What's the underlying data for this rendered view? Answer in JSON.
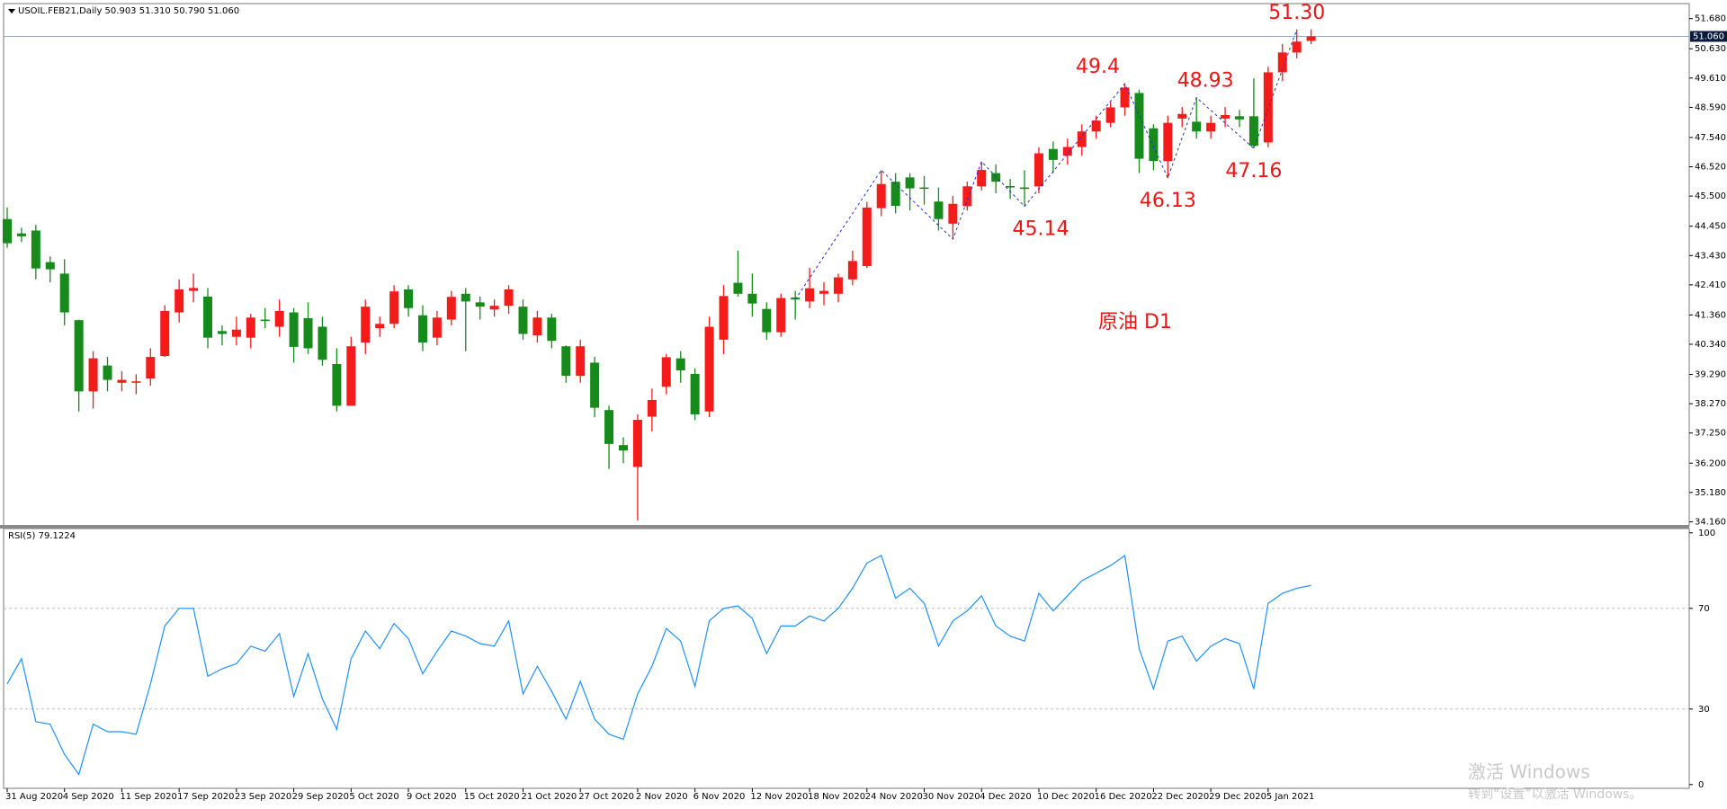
{
  "header": "USOIL.FEB21,Daily  50.903 51.310 50.790 51.060",
  "watermark": {
    "line1": "激活 Windows",
    "line2": "转到“设置”以激活 Windows。"
  },
  "chart_data": [
    {
      "type": "candlestick",
      "note_text": "原油 D1",
      "categories": [
        "31 Aug 2020",
        null,
        null,
        null,
        "4 Sep 2020",
        null,
        null,
        null,
        "11 Sep 2020",
        null,
        null,
        null,
        "17 Sep 2020",
        null,
        null,
        null,
        "23 Sep 2020",
        null,
        null,
        null,
        "29 Sep 2020",
        null,
        null,
        null,
        "5 Oct 2020",
        null,
        null,
        null,
        "9 Oct 2020",
        null,
        null,
        null,
        "15 Oct 2020",
        null,
        null,
        null,
        "21 Oct 2020",
        null,
        null,
        null,
        "27 Oct 2020",
        null,
        null,
        null,
        "2 Nov 2020",
        null,
        null,
        null,
        "6 Nov 2020",
        null,
        null,
        null,
        "12 Nov 2020",
        null,
        null,
        null,
        "18 Nov 2020",
        null,
        null,
        null,
        "24 Nov 2020",
        null,
        null,
        null,
        "30 Nov 2020",
        null,
        null,
        null,
        "4 Dec 2020",
        null,
        null,
        null,
        "10 Dec 2020",
        null,
        null,
        null,
        "16 Dec 2020",
        null,
        null,
        null,
        "22 Dec 2020",
        null,
        null,
        null,
        "29 Dec 2020",
        null,
        null,
        null,
        "5 Jan 2021",
        null,
        null,
        null
      ],
      "open": [
        44.7,
        44.2,
        44.3,
        43.2,
        42.8,
        41.18,
        38.7,
        39.6,
        39.0,
        39.0,
        39.15,
        39.93,
        41.45,
        42.2,
        42.0,
        40.8,
        40.6,
        40.57,
        41.2,
        40.95,
        41.45,
        41.25,
        40.95,
        39.65,
        38.2,
        40.4,
        40.9,
        41.05,
        42.25,
        41.35,
        40.57,
        41.2,
        42.1,
        41.8,
        41.55,
        41.68,
        41.65,
        40.65,
        41.27,
        40.27,
        39.24,
        39.7,
        38.05,
        36.83,
        36.07,
        37.82,
        38.86,
        39.85,
        39.31,
        38.0,
        40.5,
        42.48,
        42.1,
        41.57,
        40.76,
        41.97,
        41.83,
        42.1,
        42.1,
        42.6,
        43.06,
        45.08,
        46.0,
        46.15,
        45.8,
        45.31,
        44.54,
        45.15,
        45.84,
        46.3,
        45.85,
        45.8,
        45.84,
        47.14,
        46.91,
        47.21,
        47.75,
        48.05,
        48.59,
        49.09,
        47.86,
        46.72,
        48.2,
        48.09,
        47.75,
        48.2,
        48.28,
        48.28,
        47.37,
        49.81,
        50.5,
        50.903
      ],
      "high": [
        45.1,
        44.4,
        44.5,
        43.4,
        43.3,
        41.2,
        40.1,
        39.9,
        39.4,
        39.3,
        40.2,
        41.7,
        42.6,
        42.8,
        42.3,
        41.0,
        41.3,
        41.4,
        41.6,
        41.9,
        41.6,
        41.8,
        41.3,
        40.2,
        40.6,
        41.9,
        41.3,
        42.4,
        42.4,
        41.7,
        41.5,
        42.2,
        42.3,
        42.0,
        41.9,
        42.4,
        41.9,
        41.5,
        41.4,
        40.3,
        40.5,
        39.9,
        38.2,
        37.1,
        37.9,
        38.8,
        40.0,
        40.1,
        39.5,
        41.3,
        42.4,
        43.6,
        42.8,
        41.8,
        42.1,
        42.2,
        43.0,
        42.5,
        42.8,
        43.6,
        45.3,
        46.4,
        46.3,
        46.3,
        46.2,
        45.8,
        45.5,
        46.0,
        46.7,
        46.6,
        46.1,
        46.4,
        47.2,
        47.4,
        47.5,
        48.0,
        48.3,
        48.8,
        49.41,
        49.2,
        48.0,
        48.3,
        48.6,
        48.93,
        48.3,
        48.6,
        48.5,
        49.6,
        50.0,
        50.8,
        51.3,
        51.31
      ],
      "low": [
        43.7,
        43.9,
        42.6,
        42.5,
        41.0,
        38.0,
        38.1,
        38.7,
        38.7,
        38.6,
        38.9,
        39.9,
        41.1,
        41.8,
        40.2,
        40.3,
        40.3,
        40.2,
        40.9,
        40.6,
        39.7,
        40.0,
        39.6,
        38.0,
        38.2,
        40.0,
        40.6,
        40.9,
        41.3,
        40.1,
        40.3,
        41.0,
        40.1,
        41.2,
        41.3,
        41.4,
        40.5,
        40.4,
        40.2,
        39.0,
        39.0,
        37.8,
        36.0,
        36.2,
        34.2,
        37.3,
        38.6,
        39.0,
        37.7,
        37.8,
        40.0,
        42.0,
        41.3,
        40.5,
        40.6,
        41.2,
        41.6,
        41.7,
        41.8,
        42.4,
        43.0,
        44.8,
        44.9,
        45.0,
        45.2,
        44.3,
        44.0,
        45.0,
        45.7,
        45.6,
        45.4,
        45.14,
        45.6,
        46.3,
        46.6,
        46.9,
        47.5,
        47.9,
        48.3,
        46.3,
        46.4,
        46.13,
        47.9,
        47.5,
        47.5,
        47.9,
        47.9,
        47.16,
        47.2,
        49.5,
        50.3,
        50.79
      ],
      "close": [
        43.86,
        44.1,
        42.98,
        42.95,
        41.45,
        38.7,
        39.85,
        39.1,
        39.1,
        39.05,
        39.9,
        41.5,
        42.25,
        42.3,
        40.57,
        40.7,
        40.85,
        41.27,
        41.15,
        41.5,
        40.25,
        40.2,
        39.8,
        38.2,
        40.27,
        41.65,
        41.05,
        42.18,
        41.6,
        40.4,
        41.27,
        41.99,
        41.83,
        41.65,
        41.68,
        42.25,
        40.7,
        41.27,
        40.46,
        39.24,
        40.27,
        38.13,
        36.87,
        36.64,
        37.71,
        38.4,
        39.89,
        39.43,
        37.9,
        40.95,
        42.02,
        42.1,
        41.76,
        40.76,
        41.95,
        41.9,
        42.29,
        42.2,
        42.67,
        43.24,
        45.1,
        45.92,
        45.16,
        45.77,
        45.77,
        44.7,
        45.23,
        45.84,
        46.41,
        46.0,
        45.8,
        45.75,
        46.99,
        46.76,
        47.21,
        47.75,
        48.13,
        48.59,
        49.28,
        46.8,
        46.72,
        48.05,
        48.36,
        47.75,
        48.05,
        48.32,
        48.17,
        47.25,
        49.81,
        50.5,
        50.88,
        51.06
      ],
      "up_color": "#f41b1b",
      "down_color": "#178a1c",
      "ylim": [
        34.08,
        52.14
      ],
      "yticks": [
        {
          "value": 51.68,
          "label": "51.680"
        },
        {
          "value": 50.63,
          "label": "50.630"
        },
        {
          "value": 49.61,
          "label": "49.610"
        },
        {
          "value": 48.59,
          "label": "48.590"
        },
        {
          "value": 47.54,
          "label": "47.540"
        },
        {
          "value": 46.52,
          "label": "46.520"
        },
        {
          "value": 45.5,
          "label": "45.500"
        },
        {
          "value": 44.45,
          "label": "44.450"
        },
        {
          "value": 43.43,
          "label": "43.430"
        },
        {
          "value": 42.41,
          "label": "42.410"
        },
        {
          "value": 41.36,
          "label": "41.360"
        },
        {
          "value": 40.34,
          "label": "40.340"
        },
        {
          "value": 39.29,
          "label": "39.290"
        },
        {
          "value": 38.27,
          "label": "38.270"
        },
        {
          "value": 37.25,
          "label": "37.250"
        },
        {
          "value": 36.2,
          "label": "36.200"
        },
        {
          "value": 35.18,
          "label": "35.180"
        },
        {
          "value": 34.16,
          "label": "34.160"
        }
      ],
      "last_price": {
        "value": 51.06,
        "label": "51.060"
      },
      "zigzag": {
        "color": "#2b2bd6",
        "x": [
          55,
          61,
          66,
          68,
          71,
          78,
          81,
          83,
          87,
          90
        ],
        "values": [
          41.9,
          46.4,
          44.0,
          46.7,
          45.14,
          49.41,
          46.13,
          48.93,
          47.16,
          51.3
        ],
        "value_labels": [
          null,
          null,
          null,
          null,
          "45.14",
          "49.4",
          "46.13",
          "48.93",
          "47.16",
          "51.30"
        ]
      }
    },
    {
      "type": "line",
      "title": "RSI(5) 79.1224",
      "color": "#1e90ff",
      "values": [
        40,
        50,
        25,
        24,
        12,
        4,
        24,
        21,
        21,
        20,
        40,
        63,
        70,
        70,
        43,
        46,
        48,
        55,
        53,
        60,
        35,
        52,
        34,
        22,
        50,
        61,
        54,
        64,
        58,
        44,
        53,
        61,
        59,
        56,
        55,
        65,
        36,
        47,
        37,
        26,
        41,
        26,
        20,
        18,
        36,
        47,
        62,
        57,
        39,
        65,
        70,
        71,
        66,
        52,
        63,
        63,
        67,
        65,
        70,
        78,
        88,
        91,
        74,
        78,
        72,
        55,
        65,
        69,
        75,
        63,
        59,
        57,
        76,
        69,
        75,
        81,
        84,
        87,
        91,
        54,
        38,
        57,
        59,
        49,
        55,
        58,
        56,
        38,
        72,
        76,
        78,
        79.1224
      ],
      "ylim": [
        -1.5,
        101
      ],
      "yticks": [
        100,
        70,
        30,
        0
      ],
      "levels": [
        70,
        30
      ]
    }
  ]
}
